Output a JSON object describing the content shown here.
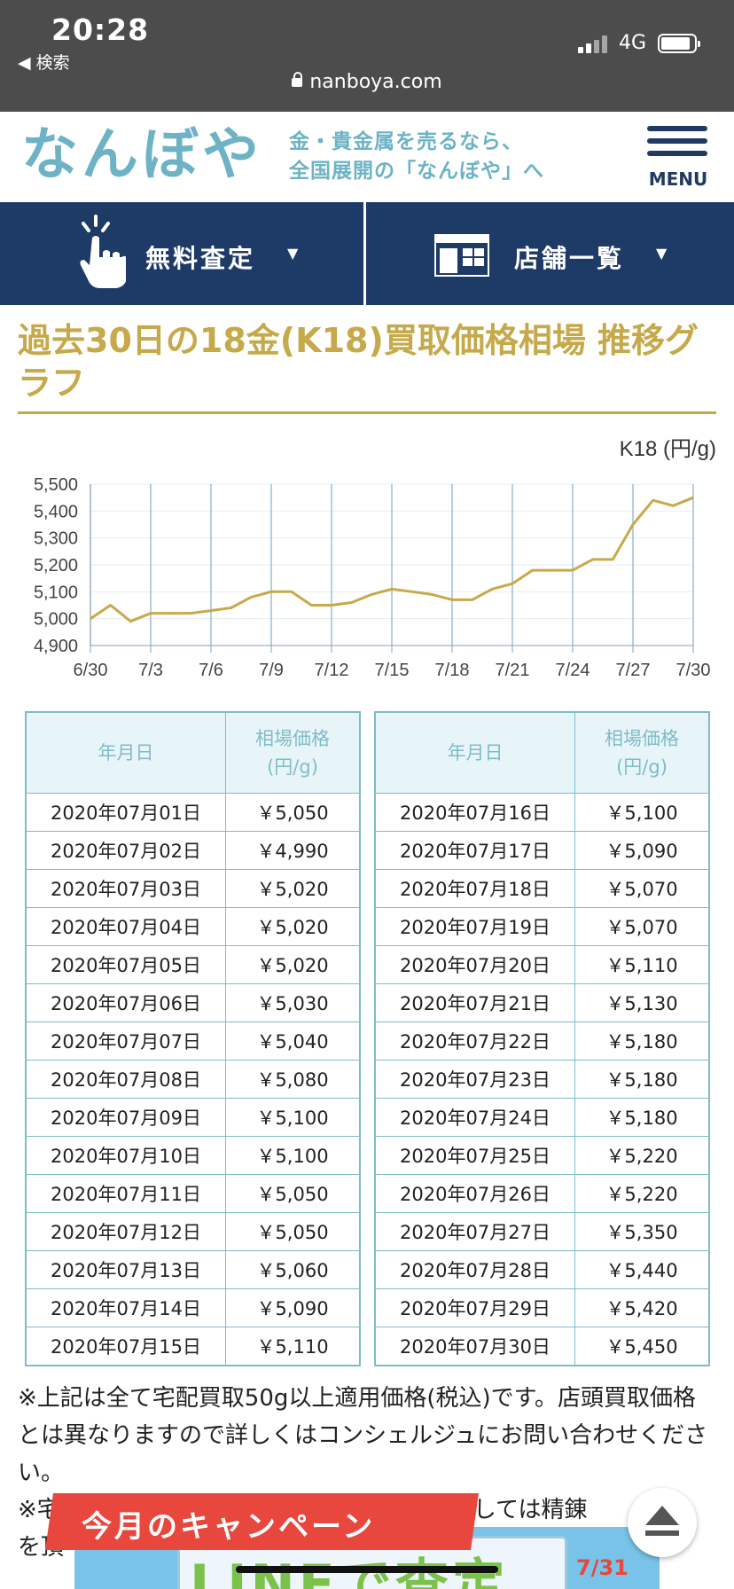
{
  "status": {
    "time": "20:28",
    "back": "◀ 検索",
    "network": "4G",
    "url": "nanboya.com"
  },
  "header": {
    "logo": "なんぼや",
    "tagline_line1": "金・貴金属を売るなら、",
    "tagline_line2": "全国展開の「なんぼや」へ",
    "menu_label": "MENU"
  },
  "nav": {
    "appraisal": "無料査定",
    "stores": "店舗一覧",
    "arrow": "▼"
  },
  "page_title": "過去30日の18金(K18)買取価格相場 推移グラフ",
  "chart_data": {
    "type": "line",
    "unit_label": "K18 (円/g)",
    "x": [
      "6/30",
      "7/1",
      "7/2",
      "7/3",
      "7/4",
      "7/5",
      "7/6",
      "7/7",
      "7/8",
      "7/9",
      "7/10",
      "7/11",
      "7/12",
      "7/13",
      "7/14",
      "7/15",
      "7/16",
      "7/17",
      "7/18",
      "7/19",
      "7/20",
      "7/21",
      "7/22",
      "7/23",
      "7/24",
      "7/25",
      "7/26",
      "7/27",
      "7/28",
      "7/29",
      "7/30"
    ],
    "xticks": [
      "6/30",
      "7/3",
      "7/6",
      "7/9",
      "7/12",
      "7/15",
      "7/18",
      "7/21",
      "7/24",
      "7/27",
      "7/30"
    ],
    "values": [
      5000,
      5050,
      4990,
      5020,
      5020,
      5020,
      5030,
      5040,
      5080,
      5100,
      5100,
      5050,
      5050,
      5060,
      5090,
      5110,
      5100,
      5090,
      5070,
      5070,
      5110,
      5130,
      5180,
      5180,
      5180,
      5220,
      5220,
      5350,
      5440,
      5420,
      5450
    ],
    "yticks": [
      "5,500",
      "5,400",
      "5,300",
      "5,200",
      "5,100",
      "5,000",
      "4,900"
    ],
    "ylim": [
      4900,
      5500
    ],
    "line_color": "#c9a94a",
    "grid": true
  },
  "table": {
    "header_date": "年月日",
    "header_price_line1": "相場価格",
    "header_price_line2": "(円/g)",
    "left": [
      {
        "date": "2020年07月01日",
        "price": "￥5,050"
      },
      {
        "date": "2020年07月02日",
        "price": "￥4,990"
      },
      {
        "date": "2020年07月03日",
        "price": "￥5,020"
      },
      {
        "date": "2020年07月04日",
        "price": "￥5,020"
      },
      {
        "date": "2020年07月05日",
        "price": "￥5,020"
      },
      {
        "date": "2020年07月06日",
        "price": "￥5,030"
      },
      {
        "date": "2020年07月07日",
        "price": "￥5,040"
      },
      {
        "date": "2020年07月08日",
        "price": "￥5,080"
      },
      {
        "date": "2020年07月09日",
        "price": "￥5,100"
      },
      {
        "date": "2020年07月10日",
        "price": "￥5,100"
      },
      {
        "date": "2020年07月11日",
        "price": "￥5,050"
      },
      {
        "date": "2020年07月12日",
        "price": "￥5,050"
      },
      {
        "date": "2020年07月13日",
        "price": "￥5,060"
      },
      {
        "date": "2020年07月14日",
        "price": "￥5,090"
      },
      {
        "date": "2020年07月15日",
        "price": "￥5,110"
      }
    ],
    "right": [
      {
        "date": "2020年07月16日",
        "price": "￥5,100"
      },
      {
        "date": "2020年07月17日",
        "price": "￥5,090"
      },
      {
        "date": "2020年07月18日",
        "price": "￥5,070"
      },
      {
        "date": "2020年07月19日",
        "price": "￥5,070"
      },
      {
        "date": "2020年07月20日",
        "price": "￥5,110"
      },
      {
        "date": "2020年07月21日",
        "price": "￥5,130"
      },
      {
        "date": "2020年07月22日",
        "price": "￥5,180"
      },
      {
        "date": "2020年07月23日",
        "price": "￥5,180"
      },
      {
        "date": "2020年07月24日",
        "price": "￥5,180"
      },
      {
        "date": "2020年07月25日",
        "price": "￥5,220"
      },
      {
        "date": "2020年07月26日",
        "price": "￥5,220"
      },
      {
        "date": "2020年07月27日",
        "price": "￥5,350"
      },
      {
        "date": "2020年07月28日",
        "price": "￥5,440"
      },
      {
        "date": "2020年07月29日",
        "price": "￥5,420"
      },
      {
        "date": "2020年07月30日",
        "price": "￥5,450"
      }
    ]
  },
  "note": {
    "line1": "※上記は全て宅配買取50g以上適用価格(税込)です。店頭買取価格とは異なりますので詳しくはコンシェルジュにお問い合わせください。",
    "line2_start": "※宅",
    "line2_end": "ましては精錬",
    "line3": "を頂"
  },
  "campaign": {
    "label": "今月のキャンペーン",
    "promo_text": "LINEで査定",
    "promo_date": "7/31"
  },
  "colors": {
    "navy": "#1e3a66",
    "gold": "#c6a94a",
    "teal": "#6db3c5",
    "red": "#e8473d"
  }
}
